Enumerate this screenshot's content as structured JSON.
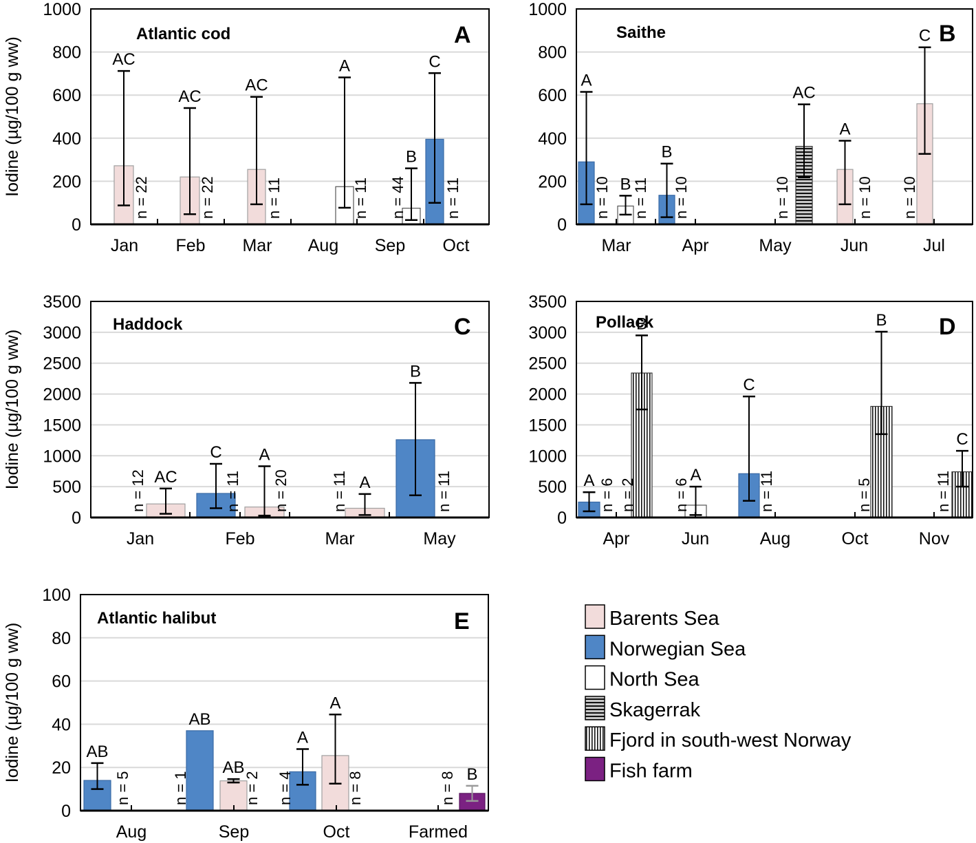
{
  "legend": {
    "items": [
      {
        "key": "barents",
        "label": "Barents Sea",
        "color": "#f2dcdb"
      },
      {
        "key": "norwegian",
        "label": "Norwegian Sea",
        "color": "#4f86c6"
      },
      {
        "key": "north",
        "label": "North Sea",
        "color": "#ffffff"
      },
      {
        "key": "skagerrak",
        "label": "Skagerrak",
        "pattern": "horizontal-lines"
      },
      {
        "key": "fjord",
        "label": "Fjord in south-west Norway",
        "pattern": "vertical-lines"
      },
      {
        "key": "farm",
        "label": "Fish farm",
        "color": "#7b2182"
      }
    ]
  },
  "chart_data": [
    {
      "type": "bar",
      "panel": "A",
      "title": "Atlantic cod",
      "ylabel": "Iodine (µg/100 g ww)",
      "ylim": [
        0,
        1000
      ],
      "yticks": [
        0,
        200,
        400,
        600,
        800,
        1000
      ],
      "grid": true,
      "categories": [
        "Jan",
        "Feb",
        "Mar",
        "Aug",
        "Sep",
        "Oct"
      ],
      "bars": [
        {
          "category": "Jan",
          "region": "barents",
          "value": 272,
          "err_low": 88,
          "err_high": 712,
          "sig": "AC",
          "n": "n = 22"
        },
        {
          "category": "Feb",
          "region": "barents",
          "value": 220,
          "err_low": 47,
          "err_high": 540,
          "sig": "AC",
          "n": "n = 22"
        },
        {
          "category": "Mar",
          "region": "barents",
          "value": 255,
          "err_low": 93,
          "err_high": 592,
          "sig": "AC",
          "n": "n = 11"
        },
        {
          "category": "Aug",
          "region": "north",
          "value": 175,
          "err_low": 77,
          "err_high": 682,
          "sig": "A",
          "n": "n = 11"
        },
        {
          "category": "Sep",
          "region": "north",
          "value": 75,
          "err_low": 20,
          "err_high": 260,
          "sig": "B",
          "n": "n = 44"
        },
        {
          "category": "Oct",
          "region": "norwegian",
          "value": 395,
          "err_low": 100,
          "err_high": 702,
          "sig": "C",
          "n": "n = 11"
        }
      ]
    },
    {
      "type": "bar",
      "panel": "B",
      "title": "Saithe",
      "ylabel": "",
      "ylim": [
        0,
        1000
      ],
      "yticks": [
        0,
        200,
        400,
        600,
        800,
        1000
      ],
      "grid": true,
      "categories": [
        "Mar",
        "Apr",
        "May",
        "Jun",
        "Jul"
      ],
      "bars": [
        {
          "category": "Mar",
          "region": "norwegian",
          "value": 290,
          "err_low": 93,
          "err_high": 615,
          "sig": "A",
          "n": "n = 10"
        },
        {
          "category": "Mar",
          "region": "north",
          "value": 85,
          "err_low": 45,
          "err_high": 133,
          "sig": "B",
          "n": "n = 11"
        },
        {
          "category": "Apr",
          "region": "norwegian",
          "value": 135,
          "err_low": 33,
          "err_high": 282,
          "sig": "B",
          "n": "n = 10"
        },
        {
          "category": "May",
          "region": "skagerrak",
          "value": 362,
          "err_low": 218,
          "err_high": 557,
          "sig": "AC",
          "n": "n = 10"
        },
        {
          "category": "Jun",
          "region": "barents",
          "value": 255,
          "err_low": 93,
          "err_high": 388,
          "sig": "A",
          "n": "n = 10"
        },
        {
          "category": "Jul",
          "region": "barents",
          "value": 560,
          "err_low": 327,
          "err_high": 822,
          "sig": "C",
          "n": "n = 10"
        }
      ]
    },
    {
      "type": "bar",
      "panel": "C",
      "title": "Haddock",
      "ylabel": "Iodine (µg/100 g ww)",
      "ylim": [
        0,
        3500
      ],
      "yticks": [
        0,
        500,
        1000,
        1500,
        2000,
        2500,
        3000,
        3500
      ],
      "grid": true,
      "categories": [
        "Jan",
        "Feb",
        "Mar",
        "May"
      ],
      "bars": [
        {
          "category": "Jan",
          "region": "barents",
          "value": 220,
          "err_low": 60,
          "err_high": 470,
          "sig": "AC",
          "n": "n = 12"
        },
        {
          "category": "Feb",
          "region": "norwegian",
          "value": 390,
          "err_low": 150,
          "err_high": 870,
          "sig": "C",
          "n": "n = 11"
        },
        {
          "category": "Feb",
          "region": "barents",
          "value": 170,
          "err_low": 30,
          "err_high": 830,
          "sig": "A",
          "n": "n = 20"
        },
        {
          "category": "Mar",
          "region": "barents",
          "value": 150,
          "err_low": 40,
          "err_high": 380,
          "sig": "A",
          "n": "n = 11"
        },
        {
          "category": "May",
          "region": "norwegian",
          "value": 1260,
          "err_low": 360,
          "err_high": 2180,
          "sig": "B",
          "n": "n = 11"
        }
      ]
    },
    {
      "type": "bar",
      "panel": "D",
      "title": "Pollack",
      "ylabel": "",
      "ylim": [
        0,
        3500
      ],
      "yticks": [
        0,
        500,
        1000,
        1500,
        2000,
        2500,
        3000,
        3500
      ],
      "grid": true,
      "categories": [
        "Apr",
        "Jun",
        "Aug",
        "Oct",
        "Nov"
      ],
      "bars": [
        {
          "category": "Apr",
          "region": "norwegian",
          "value": 250,
          "err_low": 100,
          "err_high": 410,
          "sig": "A",
          "n": "n = 6"
        },
        {
          "category": "Apr",
          "region": "fjord",
          "value": 2340,
          "err_low": 1750,
          "err_high": 2950,
          "sig": "B",
          "n": "n = 2"
        },
        {
          "category": "Jun",
          "region": "north",
          "value": 200,
          "err_low": 40,
          "err_high": 500,
          "sig": "A",
          "n": "n = 6"
        },
        {
          "category": "Aug",
          "region": "norwegian",
          "value": 710,
          "err_low": 270,
          "err_high": 1960,
          "sig": "C",
          "n": "n = 11"
        },
        {
          "category": "Oct",
          "region": "fjord",
          "value": 1800,
          "err_low": 1350,
          "err_high": 3010,
          "sig": "B",
          "n": "n = 5"
        },
        {
          "category": "Nov",
          "region": "fjord",
          "value": 740,
          "err_low": 500,
          "err_high": 1080,
          "sig": "C",
          "n": "n = 11"
        }
      ]
    },
    {
      "type": "bar",
      "panel": "E",
      "title": "Atlantic halibut",
      "ylabel": "Iodine (µg/100 g ww)",
      "ylim": [
        0,
        100
      ],
      "yticks": [
        0,
        20,
        40,
        60,
        80,
        100
      ],
      "grid": true,
      "categories": [
        "Aug",
        "Sep",
        "Oct",
        "Farmed"
      ],
      "bars": [
        {
          "category": "Aug",
          "region": "norwegian",
          "value": 14,
          "err_low": 10,
          "err_high": 22,
          "sig": "AB",
          "n": "n = 5"
        },
        {
          "category": "Sep",
          "region": "norwegian",
          "value": 37,
          "err_low": null,
          "err_high": null,
          "sig": "AB",
          "n": "n = 1"
        },
        {
          "category": "Sep",
          "region": "barents",
          "value": 13.8,
          "err_low": 13,
          "err_high": 14.6,
          "sig": "AB",
          "n": "n = 2"
        },
        {
          "category": "Oct",
          "region": "norwegian",
          "value": 18,
          "err_low": 12,
          "err_high": 28.5,
          "sig": "A",
          "n": "n = 4"
        },
        {
          "category": "Oct",
          "region": "barents",
          "value": 25.5,
          "err_low": 12.5,
          "err_high": 44.5,
          "sig": "A",
          "n": "n = 8"
        },
        {
          "category": "Farmed",
          "region": "farm",
          "value": 8,
          "err_low": 4.5,
          "err_high": 11.5,
          "sig": "B",
          "n": "n = 8"
        }
      ]
    }
  ]
}
